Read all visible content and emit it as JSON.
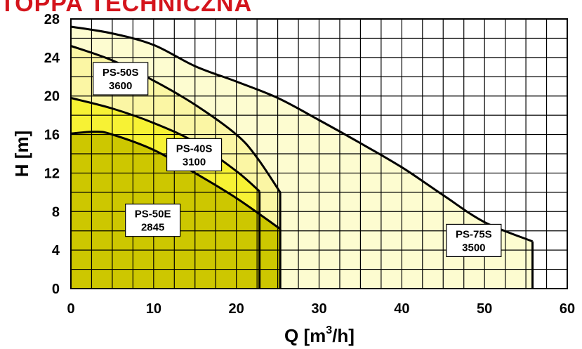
{
  "chart_data": {
    "type": "area",
    "title": "TOPPA TECHNICZNA",
    "xlabel": "Q [m³/h]",
    "ylabel": "H [m]",
    "xlim": [
      0,
      60
    ],
    "ylim": [
      0,
      28
    ],
    "x_ticks": [
      "0",
      "10",
      "20",
      "30",
      "40",
      "50",
      "60"
    ],
    "y_ticks": [
      "0",
      "4",
      "8",
      "12",
      "16",
      "20",
      "24",
      "28"
    ],
    "grid": true,
    "series": [
      {
        "name": "PS-75S",
        "label_lines": [
          "PS-75S",
          "3500"
        ],
        "color": "#fdfcd0",
        "x": [
          0,
          5,
          10,
          15,
          20,
          25,
          30,
          35,
          40,
          45,
          50,
          55.8
        ],
        "y": [
          27.2,
          26.5,
          25.3,
          23.1,
          21.5,
          19.8,
          17.5,
          15.1,
          12.6,
          9.7,
          6.9,
          4.9
        ]
      },
      {
        "name": "PS-50S",
        "label_lines": [
          "PS-50S",
          "3600"
        ],
        "color": "#fbf6a4",
        "x": [
          0,
          5,
          10,
          15,
          20,
          22.5,
          25.3
        ],
        "y": [
          25.2,
          23.7,
          21.6,
          19.1,
          16.0,
          13.6,
          10.0
        ]
      },
      {
        "name": "PS-40S",
        "label_lines": [
          "PS-40S",
          "3100"
        ],
        "color": "#f7f234",
        "x": [
          0,
          5,
          10,
          15,
          20,
          22.8
        ],
        "y": [
          19.8,
          18.7,
          17.2,
          15.2,
          12.2,
          10.1
        ]
      },
      {
        "name": "PS-50E",
        "label_lines": [
          "PS-50E",
          "2845"
        ],
        "color": "#cdc700",
        "x": [
          0,
          3,
          5,
          10,
          15,
          20,
          25.3
        ],
        "y": [
          16.1,
          16.3,
          16.0,
          14.4,
          12.0,
          9.4,
          6.2
        ]
      }
    ]
  }
}
